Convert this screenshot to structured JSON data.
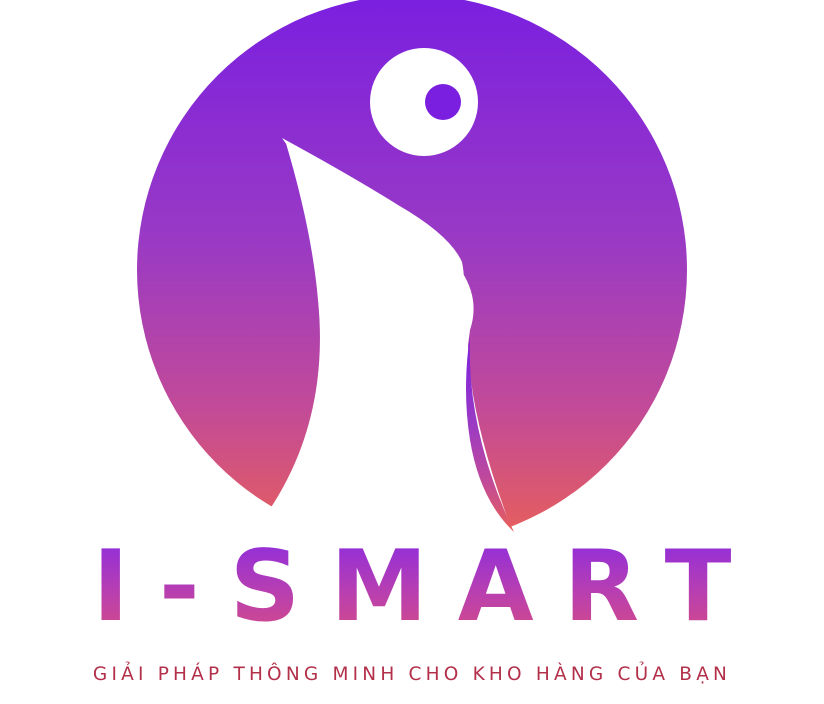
{
  "logo": {
    "icon": "i-smart-person-icon",
    "brand_name": "I-SMART",
    "tagline": "GIẢI PHÁP THÔNG MINH CHO KHO HÀNG CỦA BẠN",
    "colors": {
      "gradient_top": "#7a1fe0",
      "gradient_mid": "#b040b0",
      "gradient_bottom": "#e86058",
      "tagline": "#b2304a",
      "background": "#ffffff"
    }
  }
}
